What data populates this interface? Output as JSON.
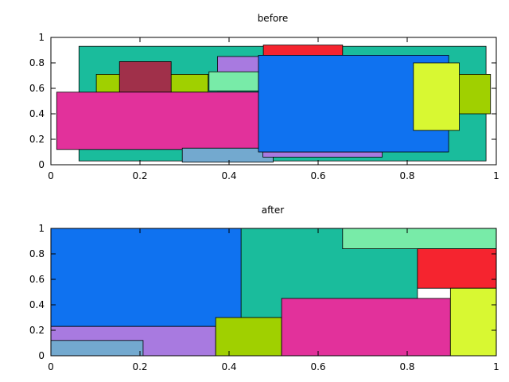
{
  "chart_data": [
    {
      "type": "rectangles",
      "title": "before",
      "xlim": [
        0,
        1
      ],
      "ylim": [
        0,
        1
      ],
      "x_ticks": [
        "0",
        "0.2",
        "0.4",
        "0.6",
        "0.8",
        "1"
      ],
      "y_ticks": [
        "0",
        "0.2",
        "0.4",
        "0.6",
        "0.8",
        "1"
      ],
      "rects": [
        {
          "x0": 0.063,
          "y0": 0.03,
          "x1": 0.977,
          "y1": 0.93,
          "color": "#1abc9c"
        },
        {
          "x0": 0.102,
          "y0": 0.57,
          "x1": 0.353,
          "y1": 0.71,
          "color": "#a0d000"
        },
        {
          "x0": 0.154,
          "y0": 0.57,
          "x1": 0.27,
          "y1": 0.81,
          "color": "#a0304a"
        },
        {
          "x0": 0.374,
          "y0": 0.58,
          "x1": 0.475,
          "y1": 0.85,
          "color": "#a87ae0"
        },
        {
          "x0": 0.355,
          "y0": 0.58,
          "x1": 0.466,
          "y1": 0.73,
          "color": "#78eba8"
        },
        {
          "x0": 0.477,
          "y0": 0.84,
          "x1": 0.655,
          "y1": 0.94,
          "color": "#f5242f"
        },
        {
          "x0": 0.013,
          "y0": 0.12,
          "x1": 0.476,
          "y1": 0.57,
          "color": "#e2319b"
        },
        {
          "x0": 0.295,
          "y0": 0.02,
          "x1": 0.499,
          "y1": 0.13,
          "color": "#73a9cf"
        },
        {
          "x0": 0.476,
          "y0": 0.06,
          "x1": 0.744,
          "y1": 0.1,
          "color": "#a87ae0"
        },
        {
          "x0": 0.466,
          "y0": 0.1,
          "x1": 0.893,
          "y1": 0.86,
          "color": "#0f72f0"
        },
        {
          "x0": 0.9,
          "y0": 0.4,
          "x1": 0.987,
          "y1": 0.71,
          "color": "#a0d000"
        },
        {
          "x0": 0.814,
          "y0": 0.27,
          "x1": 0.917,
          "y1": 0.8,
          "color": "#d8f832"
        }
      ]
    },
    {
      "type": "rectangles",
      "title": "after",
      "xlim": [
        0,
        1
      ],
      "ylim": [
        0,
        1
      ],
      "x_ticks": [
        "0",
        "0.2",
        "0.4",
        "0.6",
        "0.8",
        "1"
      ],
      "y_ticks": [
        "0",
        "0.2",
        "0.4",
        "0.6",
        "0.8",
        "1"
      ],
      "rects": [
        {
          "x0": 0.427,
          "y0": 0.3,
          "x1": 0.823,
          "y1": 1.0,
          "color": "#1abc9c"
        },
        {
          "x0": 0.655,
          "y0": 0.84,
          "x1": 1.0,
          "y1": 1.0,
          "color": "#78eba8"
        },
        {
          "x0": 0.823,
          "y0": 0.53,
          "x1": 1.0,
          "y1": 0.84,
          "color": "#f5242f"
        },
        {
          "x0": 0.0,
          "y0": 0.23,
          "x1": 0.427,
          "y1": 1.0,
          "color": "#0f72f0"
        },
        {
          "x0": 0.0,
          "y0": 0.0,
          "x1": 0.37,
          "y1": 0.23,
          "color": "#a87ae0"
        },
        {
          "x0": 0.0,
          "y0": 0.0,
          "x1": 0.207,
          "y1": 0.12,
          "color": "#73a9cf"
        },
        {
          "x0": 0.37,
          "y0": 0.0,
          "x1": 0.518,
          "y1": 0.3,
          "color": "#a0d000"
        },
        {
          "x0": 0.518,
          "y0": 0.0,
          "x1": 0.897,
          "y1": 0.45,
          "color": "#e2319b"
        },
        {
          "x0": 0.897,
          "y0": 0.0,
          "x1": 1.0,
          "y1": 0.53,
          "color": "#d8f832"
        }
      ]
    }
  ]
}
